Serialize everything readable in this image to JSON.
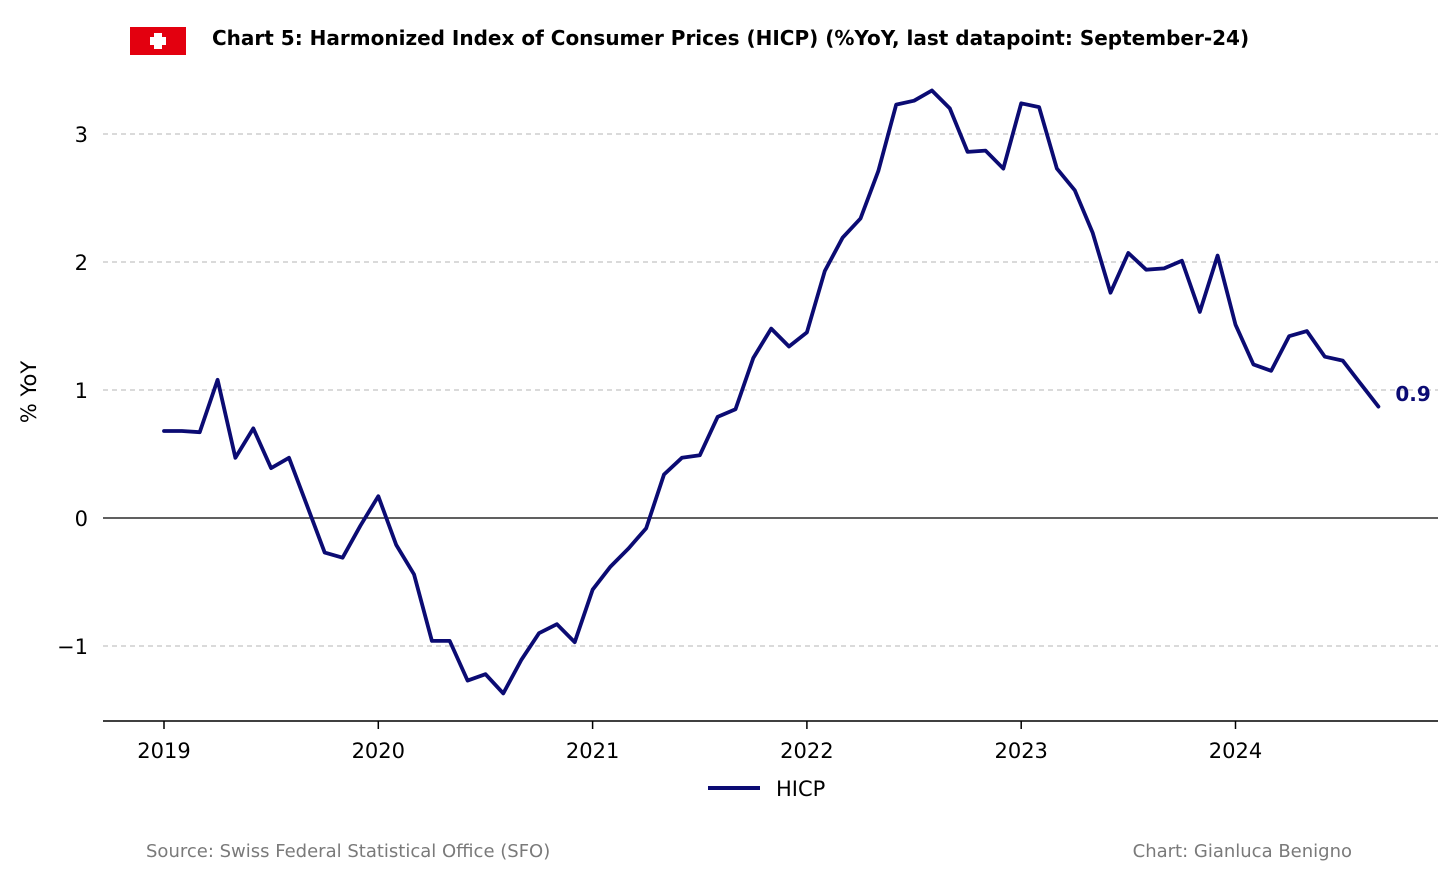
{
  "header": {
    "flag_icon": "swiss-flag-icon",
    "title": "Chart 5: Harmonized Index of Consumer Prices (HICP) (%YoY, last datapoint: September-24)"
  },
  "footer": {
    "source": "Source: Swiss Federal Statistical Office (SFO)",
    "credit": "Chart: Gianluca Benigno"
  },
  "colors": {
    "series": "#0b0b73",
    "flag_red": "#e3000f",
    "grid": "#c4c4c4",
    "footer_text": "#7a7a7a"
  },
  "chart_data": {
    "type": "line",
    "title": "Chart 5: Harmonized Index of Consumer Prices (HICP) (%YoY, last datapoint: September-24)",
    "xlabel": "",
    "ylabel": "% YoY",
    "x_ticks": [
      "2019",
      "2020",
      "2021",
      "2022",
      "2023",
      "2024"
    ],
    "y_ticks": [
      "3",
      "2",
      "1",
      "0",
      "−1"
    ],
    "y_tick_values": [
      3,
      2,
      1,
      0,
      -1
    ],
    "ylim": [
      -1.6,
      3.4
    ],
    "xlim": [
      "2018-09",
      "2024-12"
    ],
    "grid": "horizontal dashed",
    "legend": {
      "position": "bottom-center",
      "entries": [
        "HICP"
      ]
    },
    "last_value_label": "0.9",
    "series": [
      {
        "name": "HICP",
        "x": [
          "2019-01",
          "2019-02",
          "2019-03",
          "2019-04",
          "2019-05",
          "2019-06",
          "2019-07",
          "2019-08",
          "2019-09",
          "2019-10",
          "2019-11",
          "2019-12",
          "2020-01",
          "2020-02",
          "2020-03",
          "2020-04",
          "2020-05",
          "2020-06",
          "2020-07",
          "2020-08",
          "2020-09",
          "2020-10",
          "2020-11",
          "2020-12",
          "2021-01",
          "2021-02",
          "2021-03",
          "2021-04",
          "2021-05",
          "2021-06",
          "2021-07",
          "2021-08",
          "2021-09",
          "2021-10",
          "2021-11",
          "2021-12",
          "2022-01",
          "2022-02",
          "2022-03",
          "2022-04",
          "2022-05",
          "2022-06",
          "2022-07",
          "2022-08",
          "2022-09",
          "2022-10",
          "2022-11",
          "2022-12",
          "2023-01",
          "2023-02",
          "2023-03",
          "2023-04",
          "2023-05",
          "2023-06",
          "2023-07",
          "2023-08",
          "2023-09",
          "2023-10",
          "2023-11",
          "2023-12",
          "2024-01",
          "2024-02",
          "2024-03",
          "2024-04",
          "2024-05",
          "2024-06",
          "2024-07",
          "2024-08",
          "2024-09"
        ],
        "values": [
          0.68,
          0.68,
          0.67,
          1.08,
          0.47,
          0.7,
          0.39,
          0.47,
          0.1,
          -0.27,
          -0.31,
          -0.06,
          0.17,
          -0.21,
          -0.44,
          -0.96,
          -0.96,
          -1.27,
          -1.22,
          -1.37,
          -1.11,
          -0.9,
          -0.83,
          -0.97,
          -0.56,
          -0.38,
          -0.24,
          -0.08,
          0.34,
          0.47,
          0.49,
          0.79,
          0.85,
          1.25,
          1.48,
          1.34,
          1.45,
          1.93,
          2.19,
          2.34,
          2.71,
          3.23,
          3.26,
          3.34,
          3.2,
          2.86,
          2.87,
          2.73,
          3.24,
          3.21,
          2.73,
          2.56,
          2.23,
          1.76,
          2.07,
          1.94,
          1.95,
          2.01,
          1.61,
          2.05,
          1.51,
          1.2,
          1.15,
          1.42,
          1.46,
          1.26,
          1.23,
          1.05,
          0.87
        ]
      }
    ]
  }
}
